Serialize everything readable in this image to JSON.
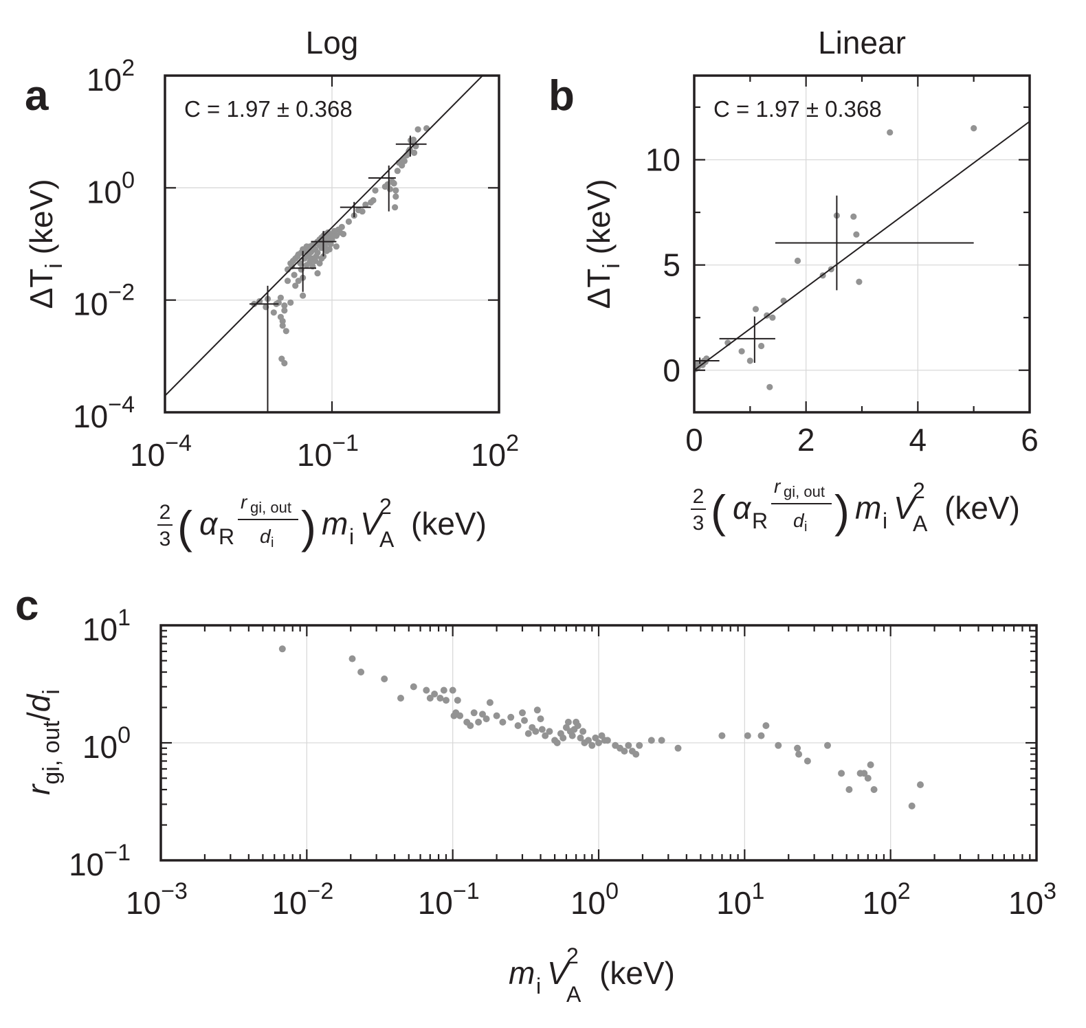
{
  "chart_data": [
    {
      "panel": "a",
      "type": "scatter",
      "title": "Log",
      "annotation": "C = 1.97 ± 0.368",
      "xscale": "log",
      "yscale": "log",
      "xlim": [
        0.0001,
        100
      ],
      "ylim": [
        0.0001,
        100
      ],
      "xticks": [
        0.0001,
        0.1,
        100
      ],
      "yticks": [
        0.0001,
        0.01,
        1,
        100
      ],
      "xtick_labels": [
        {
          "base": "10",
          "exp": "−4"
        },
        {
          "base": "10",
          "exp": "−1"
        },
        {
          "base": "10",
          "exp": "2"
        }
      ],
      "ytick_labels": [
        {
          "base": "10",
          "exp": "−4"
        },
        {
          "base": "10",
          "exp": "−2"
        },
        {
          "base": "10",
          "exp": "0"
        },
        {
          "base": "10",
          "exp": "2"
        }
      ],
      "xlabel": "2/3 (α_R r_gi,out/d_i) m_i V_A^2 (keV)",
      "ylabel": "ΔT_i (keV)",
      "fit": {
        "slope": 1.97,
        "x_range": [
          0.0001,
          100
        ]
      },
      "binned_errorbars": [
        {
          "x": 0.007,
          "y": 0.0085,
          "x_lo": 0.0033,
          "x_hi": 0.011,
          "y_lo": 0.0001,
          "y_hi": 0.018
        },
        {
          "x": 0.03,
          "y": 0.037,
          "x_lo": 0.018,
          "x_hi": 0.052,
          "y_lo": 0.014,
          "y_hi": 0.075
        },
        {
          "x": 0.07,
          "y": 0.11,
          "x_lo": 0.042,
          "x_hi": 0.12,
          "y_lo": 0.06,
          "y_hi": 0.17
        },
        {
          "x": 0.25,
          "y": 0.45,
          "x_lo": 0.14,
          "x_hi": 0.5,
          "y_lo": 0.3,
          "y_hi": 0.56
        },
        {
          "x": 1.05,
          "y": 1.5,
          "x_lo": 0.45,
          "x_hi": 1.4,
          "y_lo": 0.38,
          "y_hi": 2.5
        },
        {
          "x": 2.55,
          "y": 6.0,
          "x_lo": 1.4,
          "x_hi": 5.0,
          "y_lo": 3.6,
          "y_hi": 8.5
        }
      ],
      "points": [
        [
          0.004,
          0.0085
        ],
        [
          0.005,
          0.0095
        ],
        [
          0.0065,
          0.0075
        ],
        [
          0.007,
          0.0105
        ],
        [
          0.009,
          0.006
        ],
        [
          0.01,
          0.0085
        ],
        [
          0.011,
          0.009
        ],
        [
          0.012,
          0.011
        ],
        [
          0.012,
          0.005
        ],
        [
          0.013,
          0.0035
        ],
        [
          0.013,
          0.0042
        ],
        [
          0.014,
          0.0065
        ],
        [
          0.015,
          0.0028
        ],
        [
          0.0125,
          0.0009
        ],
        [
          0.014,
          0.00075
        ],
        [
          0.014,
          0.008
        ],
        [
          0.016,
          0.022
        ],
        [
          0.016,
          0.035
        ],
        [
          0.018,
          0.045
        ],
        [
          0.018,
          0.009
        ],
        [
          0.019,
          0.04
        ],
        [
          0.02,
          0.05
        ],
        [
          0.021,
          0.028
        ],
        [
          0.022,
          0.055
        ],
        [
          0.022,
          0.018
        ],
        [
          0.024,
          0.06
        ],
        [
          0.025,
          0.065
        ],
        [
          0.025,
          0.022
        ],
        [
          0.027,
          0.045
        ],
        [
          0.028,
          0.07
        ],
        [
          0.028,
          0.035
        ],
        [
          0.03,
          0.025
        ],
        [
          0.03,
          0.012
        ],
        [
          0.032,
          0.055
        ],
        [
          0.033,
          0.075
        ],
        [
          0.035,
          0.042
        ],
        [
          0.036,
          0.085
        ],
        [
          0.038,
          0.06
        ],
        [
          0.04,
          0.09
        ],
        [
          0.04,
          0.048
        ],
        [
          0.042,
          0.072
        ],
        [
          0.045,
          0.095
        ],
        [
          0.045,
          0.055
        ],
        [
          0.048,
          0.1
        ],
        [
          0.05,
          0.08
        ],
        [
          0.052,
          0.06
        ],
        [
          0.055,
          0.11
        ],
        [
          0.055,
          0.07
        ],
        [
          0.06,
          0.095
        ],
        [
          0.06,
          0.12
        ],
        [
          0.065,
          0.085
        ],
        [
          0.065,
          0.13
        ],
        [
          0.07,
          0.1
        ],
        [
          0.07,
          0.14
        ],
        [
          0.075,
          0.09
        ],
        [
          0.075,
          0.15
        ],
        [
          0.08,
          0.12
        ],
        [
          0.085,
          0.11
        ],
        [
          0.085,
          0.16
        ],
        [
          0.09,
          0.13
        ],
        [
          0.095,
          0.1
        ],
        [
          0.1,
          0.15
        ],
        [
          0.1,
          0.12
        ],
        [
          0.11,
          0.17
        ],
        [
          0.12,
          0.14
        ],
        [
          0.13,
          0.18
        ],
        [
          0.12,
          0.09
        ],
        [
          0.14,
          0.16
        ],
        [
          0.15,
          0.2
        ],
        [
          0.16,
          0.15
        ],
        [
          0.055,
          0.03
        ],
        [
          0.06,
          0.045
        ],
        [
          0.065,
          0.055
        ],
        [
          0.045,
          0.04
        ],
        [
          0.05,
          0.05
        ],
        [
          0.08,
          0.075
        ],
        [
          0.09,
          0.08
        ],
        [
          0.07,
          0.06
        ],
        [
          0.03,
          0.08
        ],
        [
          0.035,
          0.09
        ],
        [
          0.04,
          0.07
        ],
        [
          0.2,
          0.25
        ],
        [
          0.25,
          0.32
        ],
        [
          0.3,
          0.4
        ],
        [
          0.35,
          0.38
        ],
        [
          0.4,
          0.5
        ],
        [
          0.55,
          0.6
        ],
        [
          0.6,
          0.9
        ],
        [
          0.5,
          0.55
        ],
        [
          0.9,
          1.05
        ],
        [
          1.0,
          1.15
        ],
        [
          1.1,
          0.95
        ],
        [
          1.2,
          1.3
        ],
        [
          1.3,
          1.2
        ],
        [
          1.4,
          0.7
        ],
        [
          1.4,
          0.9
        ],
        [
          1.35,
          0.45
        ],
        [
          1.5,
          2.0
        ],
        [
          1.6,
          2.8
        ],
        [
          1.8,
          2.5
        ],
        [
          1.9,
          3.2
        ],
        [
          2.0,
          3.0
        ],
        [
          2.4,
          4.5
        ],
        [
          2.5,
          4.8
        ],
        [
          2.6,
          7.0
        ],
        [
          2.8,
          6.5
        ],
        [
          2.9,
          7.2
        ],
        [
          3.0,
          4.2
        ],
        [
          3.5,
          11.0
        ],
        [
          5.0,
          11.5
        ],
        [
          3.2,
          5.5
        ],
        [
          2.2,
          3.8
        ]
      ]
    },
    {
      "panel": "b",
      "type": "scatter",
      "title": "Linear",
      "annotation": "C = 1.97 ± 0.368",
      "xscale": "linear",
      "yscale": "linear",
      "xlim": [
        0,
        6
      ],
      "ylim": [
        -2,
        14
      ],
      "xticks": [
        0,
        2,
        4,
        6
      ],
      "yticks": [
        0,
        5,
        10
      ],
      "xtick_labels": [
        "0",
        "2",
        "4",
        "6"
      ],
      "ytick_labels": [
        "0",
        "5",
        "10"
      ],
      "xlabel": "2/3 (α_R r_gi,out/d_i) m_i V_A^2 (keV)",
      "ylabel": "ΔT_i (keV)",
      "fit": {
        "slope": 1.97,
        "x_range": [
          0,
          6
        ]
      },
      "binned_errorbars": [
        {
          "x": 0.1,
          "y": 0.45,
          "x_lo": 0.02,
          "x_hi": 0.45,
          "y_lo": 0.3,
          "y_hi": 0.6
        },
        {
          "x": 1.08,
          "y": 1.5,
          "x_lo": 0.45,
          "x_hi": 1.45,
          "y_lo": 0.35,
          "y_hi": 2.55
        },
        {
          "x": 2.55,
          "y": 6.05,
          "x_lo": 1.45,
          "x_hi": 5.0,
          "y_lo": 3.8,
          "y_hi": 8.3
        }
      ],
      "points": [
        [
          0.02,
          0.05
        ],
        [
          0.05,
          0.1
        ],
        [
          0.08,
          0.2
        ],
        [
          0.1,
          0.3
        ],
        [
          0.12,
          0.35
        ],
        [
          0.15,
          0.25
        ],
        [
          0.18,
          0.45
        ],
        [
          0.2,
          0.4
        ],
        [
          0.22,
          0.55
        ],
        [
          0.05,
          0.3
        ],
        [
          0.6,
          1.3
        ],
        [
          0.85,
          0.9
        ],
        [
          1.0,
          0.45
        ],
        [
          1.1,
          2.9
        ],
        [
          1.2,
          1.15
        ],
        [
          1.3,
          2.6
        ],
        [
          1.35,
          -0.8
        ],
        [
          1.4,
          2.5
        ],
        [
          1.6,
          3.3
        ],
        [
          1.85,
          5.2
        ],
        [
          2.3,
          4.5
        ],
        [
          2.45,
          4.8
        ],
        [
          2.55,
          7.35
        ],
        [
          2.85,
          7.3
        ],
        [
          2.9,
          6.45
        ],
        [
          2.95,
          4.2
        ],
        [
          3.5,
          11.3
        ],
        [
          5.0,
          11.5
        ]
      ]
    },
    {
      "panel": "c",
      "type": "scatter",
      "title": "",
      "xscale": "log",
      "yscale": "log",
      "xlim": [
        0.001,
        1000
      ],
      "ylim": [
        0.1,
        10
      ],
      "xticks": [
        0.001,
        0.01,
        0.1,
        1,
        10,
        100,
        1000
      ],
      "yticks": [
        0.1,
        1,
        10
      ],
      "xtick_labels": [
        {
          "base": "10",
          "exp": "−3"
        },
        {
          "base": "10",
          "exp": "−2"
        },
        {
          "base": "10",
          "exp": "−1"
        },
        {
          "base": "10",
          "exp": "0"
        },
        {
          "base": "10",
          "exp": "1"
        },
        {
          "base": "10",
          "exp": "2"
        },
        {
          "base": "10",
          "exp": "3"
        }
      ],
      "ytick_labels": [
        {
          "base": "10",
          "exp": "−1"
        },
        {
          "base": "10",
          "exp": "0"
        },
        {
          "base": "10",
          "exp": "1"
        }
      ],
      "xlabel": "m_i V_A^2 (keV)",
      "ylabel": "r_gi,out/d_i",
      "points": [
        [
          0.0068,
          6.3
        ],
        [
          0.0205,
          5.2
        ],
        [
          0.0235,
          4.0
        ],
        [
          0.034,
          3.5
        ],
        [
          0.044,
          2.4
        ],
        [
          0.054,
          3.0
        ],
        [
          0.066,
          2.8
        ],
        [
          0.07,
          2.4
        ],
        [
          0.075,
          2.6
        ],
        [
          0.082,
          2.4
        ],
        [
          0.087,
          2.8
        ],
        [
          0.09,
          2.3
        ],
        [
          0.1,
          2.8
        ],
        [
          0.102,
          1.7
        ],
        [
          0.105,
          1.8
        ],
        [
          0.108,
          2.3
        ],
        [
          0.112,
          1.7
        ],
        [
          0.125,
          1.5
        ],
        [
          0.132,
          1.4
        ],
        [
          0.14,
          1.8
        ],
        [
          0.15,
          1.5
        ],
        [
          0.16,
          1.75
        ],
        [
          0.17,
          1.6
        ],
        [
          0.18,
          2.2
        ],
        [
          0.2,
          1.7
        ],
        [
          0.22,
          1.5
        ],
        [
          0.25,
          1.65
        ],
        [
          0.28,
          1.4
        ],
        [
          0.3,
          1.8
        ],
        [
          0.31,
          1.55
        ],
        [
          0.33,
          1.2
        ],
        [
          0.35,
          1.35
        ],
        [
          0.37,
          1.25
        ],
        [
          0.38,
          1.9
        ],
        [
          0.4,
          1.6
        ],
        [
          0.41,
          1.3
        ],
        [
          0.43,
          1.15
        ],
        [
          0.46,
          1.25
        ],
        [
          0.5,
          1.05
        ],
        [
          0.52,
          1.0
        ],
        [
          0.55,
          1.2
        ],
        [
          0.57,
          1.1
        ],
        [
          0.6,
          1.35
        ],
        [
          0.62,
          1.5
        ],
        [
          0.64,
          1.25
        ],
        [
          0.66,
          1.15
        ],
        [
          0.68,
          1.3
        ],
        [
          0.7,
          1.5
        ],
        [
          0.72,
          1.4
        ],
        [
          0.75,
          1.1
        ],
        [
          0.78,
          1.25
        ],
        [
          0.8,
          1.0
        ],
        [
          0.85,
          1.05
        ],
        [
          0.9,
          0.95
        ],
        [
          0.95,
          1.1
        ],
        [
          1.0,
          1.0
        ],
        [
          1.05,
          1.15
        ],
        [
          1.1,
          1.05
        ],
        [
          1.15,
          1.05
        ],
        [
          1.3,
          0.95
        ],
        [
          1.4,
          0.9
        ],
        [
          1.5,
          0.85
        ],
        [
          1.6,
          0.95
        ],
        [
          1.7,
          0.85
        ],
        [
          1.8,
          0.8
        ],
        [
          1.9,
          0.95
        ],
        [
          2.3,
          1.05
        ],
        [
          2.7,
          1.05
        ],
        [
          3.5,
          0.9
        ],
        [
          7.0,
          1.15
        ],
        [
          10.5,
          1.15
        ],
        [
          13.0,
          1.15
        ],
        [
          14.0,
          1.4
        ],
        [
          17.0,
          0.95
        ],
        [
          23.0,
          0.9
        ],
        [
          23.5,
          0.8
        ],
        [
          27.0,
          0.7
        ],
        [
          37.0,
          0.95
        ],
        [
          46.0,
          0.55
        ],
        [
          52.0,
          0.4
        ],
        [
          62.0,
          0.55
        ],
        [
          66.0,
          0.55
        ],
        [
          70.0,
          0.5
        ],
        [
          73.0,
          0.65
        ],
        [
          77.0,
          0.4
        ],
        [
          140.0,
          0.29
        ],
        [
          160.0,
          0.44
        ]
      ]
    }
  ],
  "labels": {
    "panel_a": "a",
    "panel_b": "b",
    "panel_c": "c",
    "title_a": "Log",
    "title_b": "Linear",
    "annot_a": "C = 1.97 ± 0.368",
    "annot_b": "C = 1.97 ± 0.368",
    "xlabel_ab_unit": "(keV)",
    "ylabel_ab_unit": "(keV)",
    "xlabel_c_unit": "(keV)"
  }
}
